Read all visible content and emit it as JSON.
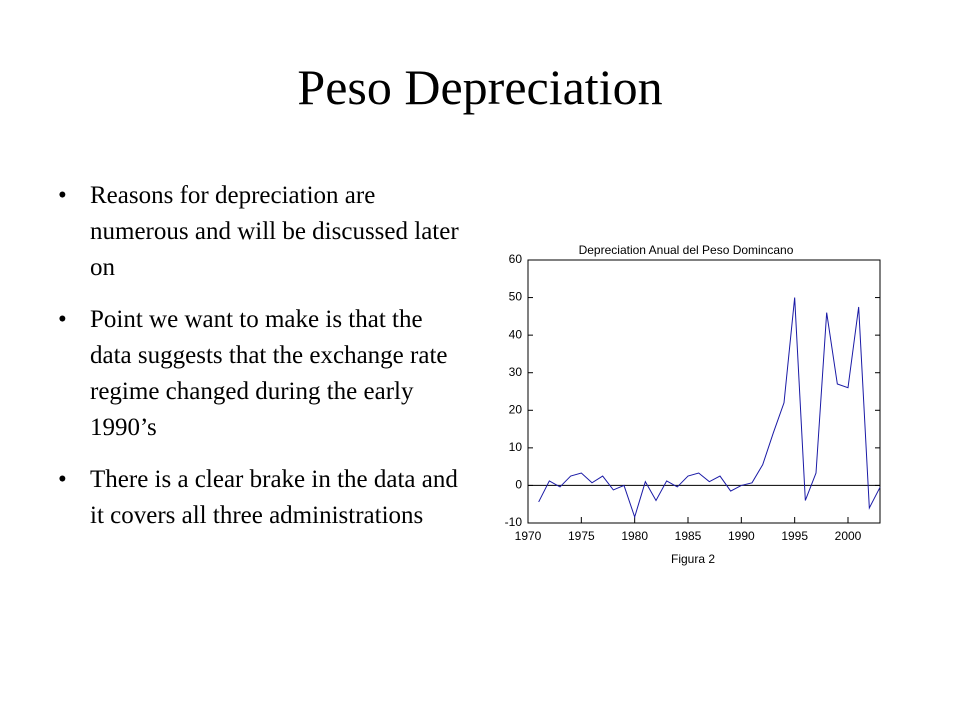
{
  "title": "Peso Depreciation",
  "bullets": [
    "Reasons for depreciation are numerous and will be discussed later on",
    "Point we want to make is that the data suggests that the exchange rate regime changed during the early 1990’s",
    "There is a clear brake in the data and it covers all three administrations"
  ],
  "chart_data": {
    "type": "line",
    "title": "Depreciation Anual del Peso Domincano",
    "x_label": "Figura 2",
    "x": [
      1971,
      1972,
      1973,
      1974,
      1975,
      1976,
      1977,
      1978,
      1979,
      1980,
      1981,
      1982,
      1983,
      1984,
      1985,
      1986,
      1987,
      1988,
      1989,
      1990,
      1991,
      1992,
      1993,
      1994,
      1995,
      1996,
      1997,
      1998,
      1999,
      2000,
      2001,
      2002,
      2003
    ],
    "series": [
      {
        "name": "Depreciation",
        "color": "#1a1aa6",
        "values": [
          -4.4,
          1.2,
          -0.4,
          2.5,
          3.3,
          0.7,
          2.5,
          -1.2,
          0,
          -8.4,
          1,
          -4,
          1.2,
          -0.4,
          2.5,
          3.3,
          1,
          2.5,
          -1.5,
          0,
          0.7,
          5.5,
          14,
          22,
          50,
          -4,
          3.3,
          46,
          27,
          26,
          47.5,
          -6,
          -0.5
        ]
      }
    ],
    "xlim": [
      1970,
      2003
    ],
    "ylim": [
      -10,
      60
    ],
    "xticks": [
      1970,
      1975,
      1980,
      1985,
      1990,
      1995,
      2000
    ],
    "yticks": [
      -10,
      0,
      10,
      20,
      30,
      40,
      50,
      60
    ],
    "zero_line": true
  }
}
